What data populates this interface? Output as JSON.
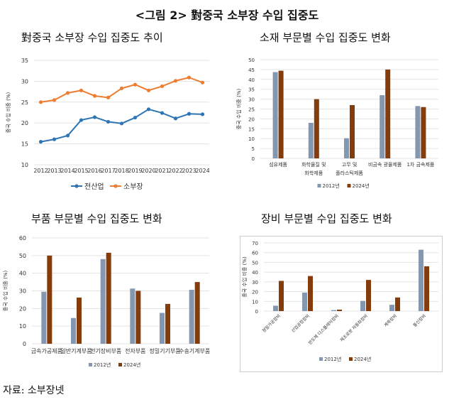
{
  "title": "<그림 2> 對중국 소부장 수입 집중도",
  "source": "자료: 소부장넷",
  "colors": {
    "series_a_line": "#2e75b6",
    "series_b_line": "#ed7d31",
    "bar_2012": "#8497b0",
    "bar_2024": "#843c0c",
    "grid": "#e3e3e3"
  },
  "chart_data": [
    {
      "type": "line",
      "title": "對중국 소부장 수입 집중도 추이",
      "ylabel": "중국 수입 비중 (%)",
      "ylim": [
        10,
        35
      ],
      "yticks": [
        10,
        15,
        20,
        25,
        30,
        35
      ],
      "grid": true,
      "legend": "bottom",
      "categories": [
        "2012",
        "2013",
        "2014",
        "2015",
        "2016",
        "2017",
        "2018",
        "2019",
        "2020",
        "2021",
        "2022",
        "2023",
        "2024"
      ],
      "series": [
        {
          "name": "전산업",
          "values": [
            15.5,
            16.1,
            17.0,
            20.7,
            21.4,
            20.3,
            19.9,
            21.3,
            23.3,
            22.4,
            21.1,
            22.2,
            22.1
          ]
        },
        {
          "name": "소부장",
          "values": [
            25.0,
            25.5,
            27.2,
            27.8,
            26.5,
            26.1,
            28.3,
            29.2,
            27.8,
            28.8,
            30.1,
            30.9,
            29.7
          ]
        }
      ]
    },
    {
      "type": "bar",
      "title": "소재 부문별 수입 집중도 변화",
      "ylabel": "중국 수입 비중 (%)",
      "ylim": [
        0,
        50
      ],
      "yticks": [
        0,
        5,
        10,
        15,
        20,
        25,
        30,
        35,
        40,
        45,
        50
      ],
      "grid": true,
      "legend": "bottom",
      "categories": [
        [
          "섬유제품"
        ],
        [
          "화학물질 및",
          "화학제품"
        ],
        [
          "고무 및",
          "플라스틱제품"
        ],
        [
          "비금속 광물제품"
        ],
        [
          "1차 금속제품"
        ]
      ],
      "series": [
        {
          "name": "2012년",
          "values": [
            43.7,
            18.0,
            10.2,
            32.0,
            26.5
          ]
        },
        {
          "name": "2024년",
          "values": [
            44.4,
            30.0,
            27.0,
            45.0,
            26.0
          ]
        }
      ]
    },
    {
      "type": "bar",
      "title": "부품 부문별 수입 집중도 변화",
      "ylabel": "중국 수입 비중 (%)",
      "ylim": [
        0,
        60
      ],
      "yticks": [
        0,
        10,
        20,
        30,
        40,
        50,
        60
      ],
      "grid": true,
      "legend": "bottom",
      "categories": [
        [
          "금속가공제품"
        ],
        [
          "일반기계부품"
        ],
        [
          "전기장비부품"
        ],
        [
          "전자부품"
        ],
        [
          "정밀기기부품"
        ],
        [
          "수송기계부품"
        ]
      ],
      "series": [
        {
          "name": "2012년",
          "values": [
            29.5,
            14.6,
            48.0,
            31.3,
            17.5,
            30.6
          ]
        },
        {
          "name": "2024년",
          "values": [
            50.0,
            26.2,
            51.6,
            30.0,
            22.6,
            35.0
          ]
        }
      ]
    },
    {
      "type": "bar",
      "title": "장비 부문별 수입 집중도 변화",
      "ylabel": "중국 수입 비중 (%)",
      "ylim": [
        0,
        70
      ],
      "yticks": [
        0,
        10,
        20,
        30,
        40,
        50,
        60,
        70
      ],
      "grid": true,
      "legend": "bottom",
      "categories": [
        [
          "정밀가공장비"
        ],
        [
          "산업공정장비"
        ],
        [
          "반도체 디스플레이장비"
        ],
        [
          "제조로봇 자동화장비"
        ],
        [
          "계측장비"
        ],
        [
          "통신장비"
        ]
      ],
      "series": [
        {
          "name": "2012년",
          "values": [
            5.5,
            19.0,
            1.0,
            10.5,
            6.5,
            63.0
          ]
        },
        {
          "name": "2024년",
          "values": [
            31.0,
            36.0,
            1.5,
            32.0,
            14.0,
            46.0
          ]
        }
      ]
    }
  ]
}
